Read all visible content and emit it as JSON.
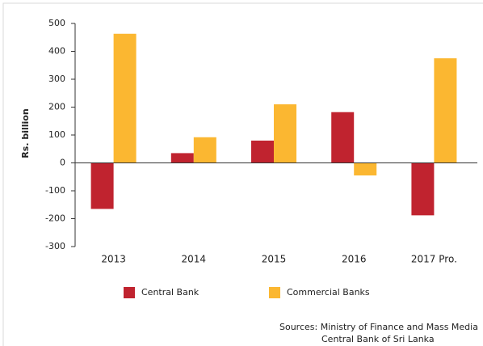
{
  "chart_data": {
    "type": "bar",
    "ylabel": "Rs. billion",
    "categories": [
      "2013",
      "2014",
      "2015",
      "2016",
      "2017 Pro."
    ],
    "series": [
      {
        "name": "Central Bank",
        "color": "#c0232f",
        "values": [
          -165,
          35,
          80,
          182,
          -188
        ]
      },
      {
        "name": "Commercial Banks",
        "color": "#fbb731",
        "values": [
          463,
          92,
          210,
          -45,
          375
        ]
      }
    ],
    "ylim": [
      -300,
      500
    ],
    "yticks": [
      -300,
      -200,
      -100,
      0,
      100,
      200,
      300,
      400,
      500
    ],
    "source": [
      "Sources: Ministry of Finance and Mass Media",
      "Central Bank of Sri Lanka"
    ]
  }
}
